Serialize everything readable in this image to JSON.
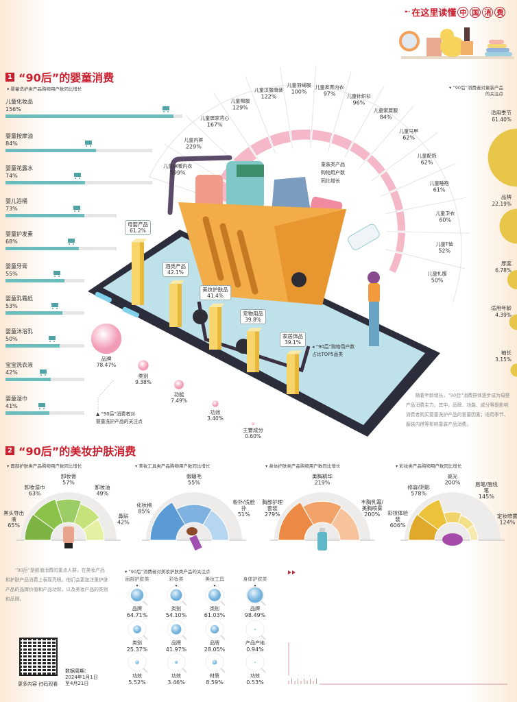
{
  "header": {
    "title_pre": "在这里读懂",
    "title_circled": [
      "中",
      "国",
      "消",
      "费"
    ]
  },
  "colors": {
    "brand_red": "#c8202f",
    "bar_teal": "#6bbcbc",
    "track": "#e6e6e6",
    "pink": "#f4b8c8",
    "gold": "#e8c64a"
  },
  "section1": {
    "number": "1",
    "title": "“90后”的婴童消费",
    "bar_subtitle": "婴童洗护类产品购物用户数同比增长",
    "bars": [
      {
        "label": "儿童化妆品",
        "value": "156%"
      },
      {
        "label": "婴童按摩油",
        "value": "84%"
      },
      {
        "label": "婴童花露水",
        "value": "74%"
      },
      {
        "label": "婴儿浴桶",
        "value": "73%"
      },
      {
        "label": "婴童护发素",
        "value": "68%"
      },
      {
        "label": "婴童牙膏",
        "value": "55%"
      },
      {
        "label": "婴童乳霜纸",
        "value": "53%"
      },
      {
        "label": "婴童沐浴乳",
        "value": "50%"
      },
      {
        "label": "宝宝洗衣液",
        "value": "42%"
      },
      {
        "label": "婴童湿巾",
        "value": "41%"
      }
    ],
    "fan": {
      "note": [
        "童装类产品",
        "购物用户数",
        "同比增长"
      ],
      "items": [
        {
          "label": "儿童保暖内衣",
          "value": "599%"
        },
        {
          "label": "儿童内裤",
          "value": "229%"
        },
        {
          "label": "儿童居家背心",
          "value": "167%"
        },
        {
          "label": "儿童棉服",
          "value": "129%"
        },
        {
          "label": "儿童汉服唐装",
          "value": "122%"
        },
        {
          "label": "儿童羽绒服",
          "value": "100%"
        },
        {
          "label": "儿童发育内衣",
          "value": "97%"
        },
        {
          "label": "儿童针织衫",
          "value": "96%"
        },
        {
          "label": "儿童家居服",
          "value": "84%"
        },
        {
          "label": "儿童马甲",
          "value": "62%"
        },
        {
          "label": "儿童配饰",
          "value": "62%"
        },
        {
          "label": "儿童睡袍",
          "value": "61%"
        },
        {
          "label": "儿童卫衣",
          "value": "60%"
        },
        {
          "label": "儿童T恤",
          "value": "52%"
        },
        {
          "label": "儿童礼服",
          "value": "50%"
        }
      ]
    },
    "top5": {
      "note": [
        "◂ “90后”购物用户数",
        "占比TOP5品类"
      ],
      "items": [
        {
          "label": "母婴产品",
          "value": "61.2%"
        },
        {
          "label": "酒类产品",
          "value": "42.1%"
        },
        {
          "label": "美妆护肤品",
          "value": "41.4%"
        },
        {
          "label": "宠物用品",
          "value": "39.8%"
        },
        {
          "label": "家居饰品",
          "value": "39.1%"
        }
      ]
    },
    "care_focus": {
      "note": [
        "▲ “90后”消费者对",
        "婴童洗护产品的关注点"
      ],
      "items": [
        {
          "label": "品牌",
          "value": "78.47%"
        },
        {
          "label": "类别",
          "value": "9.38%"
        },
        {
          "label": "功能",
          "value": "7.49%"
        },
        {
          "label": "功效",
          "value": "3.40%"
        },
        {
          "label": "主要成分",
          "value": "0.60%"
        }
      ]
    },
    "apparel_focus": {
      "title": [
        "“90后”消费者对童装产品",
        "的关注点"
      ],
      "items": [
        {
          "label": "适用季节",
          "value": "61.40%"
        },
        {
          "label": "品牌",
          "value": "22.19%"
        },
        {
          "label": "厚度",
          "value": "6.78%"
        },
        {
          "label": "适用年龄",
          "value": "4.39%"
        },
        {
          "label": "袖长",
          "value": "3.15%"
        }
      ]
    },
    "paragraph": "随着年龄增长，“90后”消费群体逐步成为母婴产品消费主力。其中，品牌、功能、成分等是影响消费者购买婴童洗护产品的重要因素；适用季节、服装内搭等影响童装产品消费。"
  },
  "section2": {
    "number": "2",
    "title": "“90后”的美妆护肤消费",
    "gauges": [
      {
        "subtitle": "面部护肤类产品购物用户数同比增长",
        "segments": [
          {
            "label": "黑头导出液",
            "value": "65%"
          },
          {
            "label": "卸妆湿巾",
            "value": "63%"
          },
          {
            "label": "卸妆膏",
            "value": "57%"
          },
          {
            "label": "卸妆油",
            "value": "49%"
          },
          {
            "label": "鼻贴",
            "value": "42%"
          }
        ]
      },
      {
        "subtitle": "美妆工具类产品购物用户数同比增长",
        "segments": [
          {
            "label": "化妆棉",
            "value": "85%"
          },
          {
            "label": "假睫毛",
            "value": "55%"
          },
          {
            "label": "粉扑/洗脸扑",
            "value": "51%"
          }
        ]
      },
      {
        "subtitle": "身体护肤类产品购物用户数同比增长",
        "segments": [
          {
            "label": "胸部护理套装",
            "value": "279%"
          },
          {
            "label": "美胸精华",
            "value": "219%"
          },
          {
            "label": "丰胸乳霜/美胸喷雾",
            "value": "200%"
          }
        ]
      },
      {
        "subtitle": "彩妆类产品购物用户数同比增长",
        "segments": [
          {
            "label": "彩妆体验装",
            "value": "606%"
          },
          {
            "label": "修容/阴影",
            "value": "578%"
          },
          {
            "label": "高光",
            "value": "200%"
          },
          {
            "label": "唇笔/唇线笔",
            "value": "145%"
          },
          {
            "label": "定妆喷雾",
            "value": "124%"
          }
        ]
      }
    ],
    "paragraph": "“90后”是颜值消费的重点人群，在美妆产品和护肤产品消费上表现亮眼。他们会更加注重护肤产品的品牌价值和产品功效，以及美妆产品的类别和品牌。",
    "focus": {
      "title": "“90后”消费者对美妆护肤类产品的关注点",
      "columns": [
        {
          "header": "面部护肤类",
          "items": [
            {
              "label": "品牌",
              "value": "64.71%"
            },
            {
              "label": "类别",
              "value": "25.37%"
            },
            {
              "label": "功效",
              "value": "5.52%"
            }
          ]
        },
        {
          "header": "彩妆类",
          "items": [
            {
              "label": "类别",
              "value": "54.10%"
            },
            {
              "label": "品牌",
              "value": "41.97%"
            },
            {
              "label": "功效",
              "value": "3.46%"
            }
          ]
        },
        {
          "header": "美妆工具",
          "items": [
            {
              "label": "类别",
              "value": "61.03%"
            },
            {
              "label": "品牌",
              "value": "28.05%"
            },
            {
              "label": "材质",
              "value": "8.59%"
            }
          ]
        },
        {
          "header": "身体护肤类",
          "items": [
            {
              "label": "品牌",
              "value": "98.49%"
            },
            {
              "label": "产品产地",
              "value": "0.94%"
            },
            {
              "label": "功效",
              "value": "0.53%"
            }
          ]
        }
      ]
    },
    "qr_caption": "更多内容 扫码观看",
    "data_period": [
      "数据周期：",
      "2024年1月1日",
      "至4月21日"
    ]
  }
}
